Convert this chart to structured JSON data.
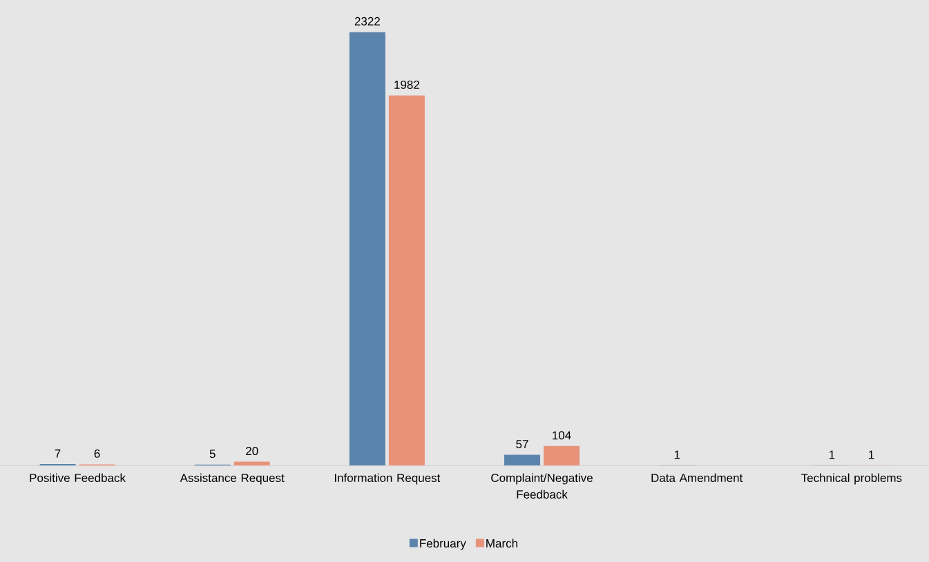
{
  "chart_data": {
    "type": "bar",
    "categories": [
      "Positive Feedback",
      "Assistance Request",
      "Information Request",
      "Complaint/Negative Feedback",
      "Data Amendment",
      "Technical problems"
    ],
    "series": [
      {
        "name": "February",
        "color": "#5b84ad",
        "values": [
          7,
          5,
          2322,
          57,
          1,
          1
        ]
      },
      {
        "name": "March",
        "color": "#e8927a",
        "values": [
          6,
          20,
          1982,
          104,
          null,
          1
        ]
      }
    ],
    "data_labels": true,
    "legend": "bottom"
  }
}
